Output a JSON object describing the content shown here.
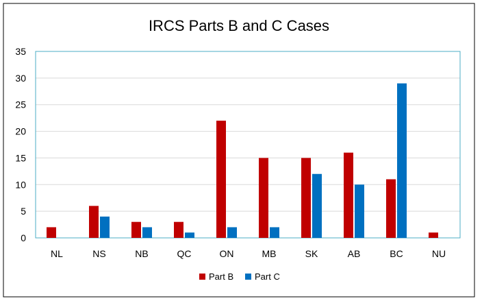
{
  "chart_data": {
    "type": "bar",
    "title": "IRCS Parts B and C Cases",
    "xlabel": "",
    "ylabel": "",
    "categories": [
      "NL",
      "NS",
      "NB",
      "QC",
      "ON",
      "MB",
      "SK",
      "AB",
      "BC",
      "NU"
    ],
    "series": [
      {
        "name": "Part B",
        "color": "#C00000",
        "values": [
          2,
          6,
          3,
          3,
          22,
          15,
          15,
          16,
          11,
          1
        ]
      },
      {
        "name": "Part C",
        "color": "#0070C0",
        "values": [
          0,
          4,
          2,
          1,
          2,
          2,
          12,
          10,
          29,
          0
        ]
      }
    ],
    "ylim": [
      0,
      35
    ],
    "yticks": [
      0,
      5,
      10,
      15,
      20,
      25,
      30,
      35
    ],
    "grid": true,
    "legend": "bottom-center"
  }
}
